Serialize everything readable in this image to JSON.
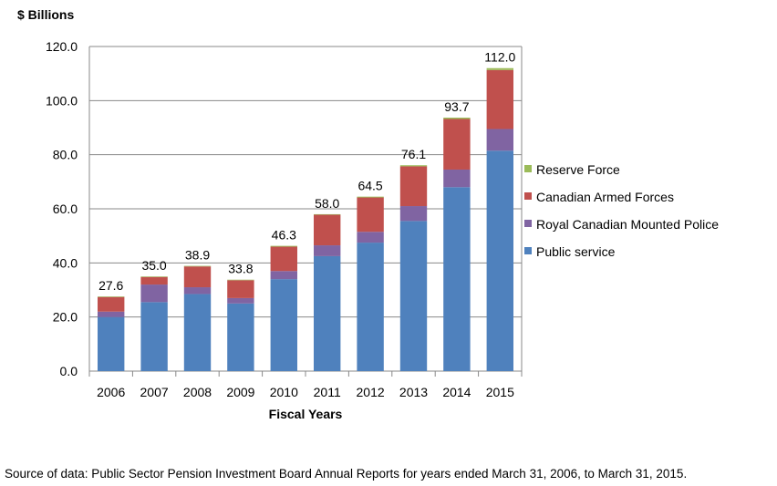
{
  "chart_data": {
    "type": "bar",
    "stacked": true,
    "title": "",
    "ylabel": "$ Billions",
    "xlabel": "Fiscal Years",
    "ylim": [
      0,
      120
    ],
    "yticks": [
      "0.0",
      "20.0",
      "40.0",
      "60.0",
      "80.0",
      "100.0",
      "120.0"
    ],
    "ytick_values": [
      0,
      20,
      40,
      60,
      80,
      100,
      120
    ],
    "categories": [
      "2006",
      "2007",
      "2008",
      "2009",
      "2010",
      "2011",
      "2012",
      "2013",
      "2014",
      "2015"
    ],
    "totals": [
      "27.6",
      "35.0",
      "38.9",
      "33.8",
      "46.3",
      "58.0",
      "64.5",
      "76.1",
      "93.7",
      "112.0"
    ],
    "grid": true,
    "legend_position": "right",
    "series": [
      {
        "name": "Public service",
        "color": "#4F81BD",
        "values": [
          20.0,
          25.5,
          28.5,
          25.0,
          34.0,
          42.5,
          47.5,
          55.5,
          68.0,
          81.5
        ]
      },
      {
        "name": "Royal Canadian Mounted Police",
        "color": "#8064A2",
        "values": [
          2.0,
          6.5,
          2.5,
          2.0,
          3.0,
          4.0,
          4.0,
          5.5,
          6.5,
          8.0
        ]
      },
      {
        "name": "Canadian Armed Forces",
        "color": "#C0504D",
        "values": [
          5.4,
          2.8,
          7.7,
          6.6,
          9.0,
          11.3,
          12.7,
          14.7,
          18.7,
          21.8
        ]
      },
      {
        "name": "Reserve Force",
        "color": "#9BBB59",
        "values": [
          0.2,
          0.2,
          0.2,
          0.2,
          0.3,
          0.2,
          0.3,
          0.4,
          0.5,
          0.7
        ]
      }
    ],
    "legend_order": [
      "Reserve Force",
      "Canadian Armed Forces",
      "Royal Canadian Mounted Police",
      "Public service"
    ]
  },
  "source_note": "Source of data: Public Sector Pension Investment Board Annual Reports for years ended March 31, 2006, to March 31, 2015."
}
